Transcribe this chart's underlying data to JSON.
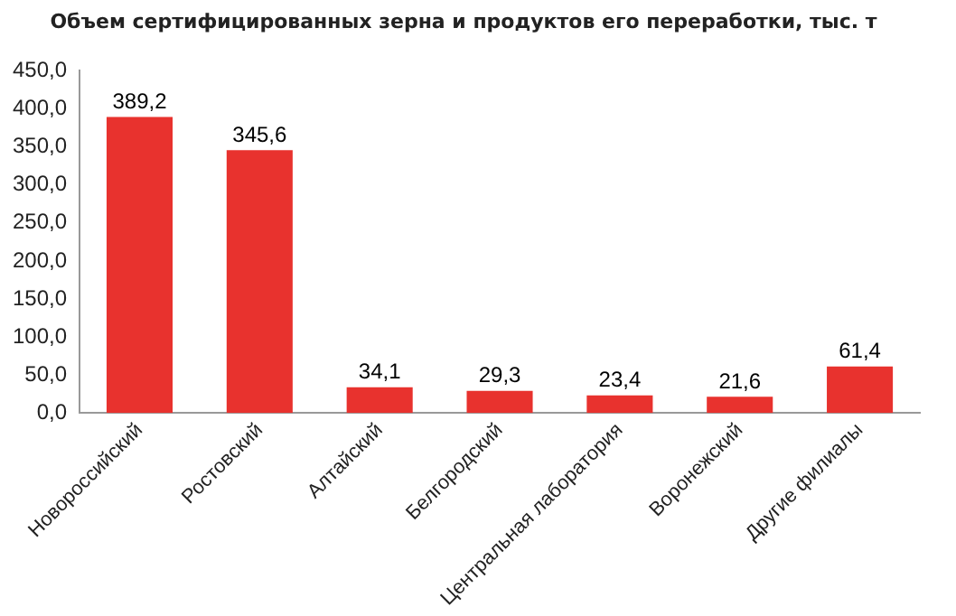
{
  "chart_data": {
    "type": "bar",
    "title": "Объем сертифицированных зерна и продуктов его переработки, тыс. т",
    "categories": [
      "Новороссийский",
      "Ростовский",
      "Алтайский",
      "Белгородский",
      "Центральная лаборатория",
      "Воронежский",
      "Другие филиалы"
    ],
    "values": [
      389.2,
      345.6,
      34.1,
      29.3,
      23.4,
      21.6,
      61.4
    ],
    "value_labels": [
      "389,2",
      "345,6",
      "34,1",
      "29,3",
      "23,4",
      "21,6",
      "61,4"
    ],
    "color": "#e8322e",
    "ylim": [
      0,
      450
    ],
    "yticks": [
      {
        "value": 0,
        "label": "0,0"
      },
      {
        "value": 50,
        "label": "50,0"
      },
      {
        "value": 100,
        "label": "100,0"
      },
      {
        "value": 150,
        "label": "150,0"
      },
      {
        "value": 200,
        "label": "200,0"
      },
      {
        "value": 250,
        "label": "250,0"
      },
      {
        "value": 300,
        "label": "300,0"
      },
      {
        "value": 350,
        "label": "350,0"
      },
      {
        "value": 400,
        "label": "400,0"
      },
      {
        "value": 450,
        "label": "450,0"
      }
    ],
    "grid": false,
    "legend": false
  }
}
